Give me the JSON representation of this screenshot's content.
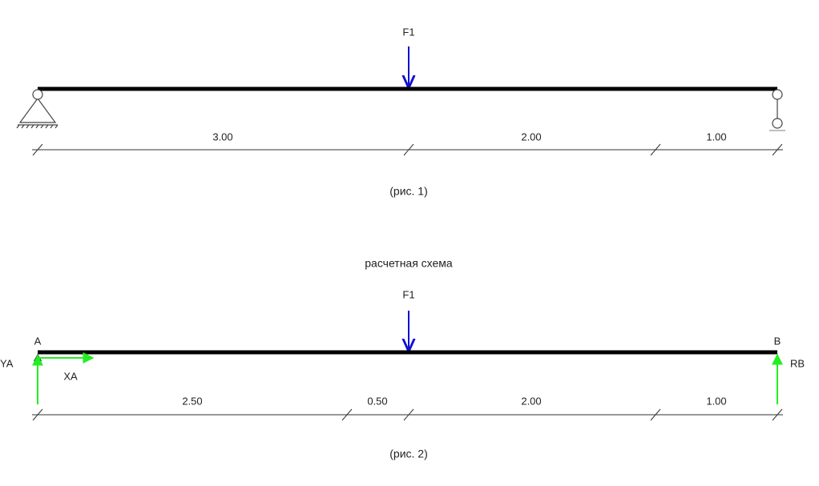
{
  "figures": [
    {
      "force_label": "F1",
      "dimensions": [
        "3.00",
        "2.00",
        "1.00"
      ],
      "caption": "(рис. 1)"
    },
    {
      "title": "расчетная схема",
      "force_label": "F1",
      "node_labels": [
        "A",
        "B"
      ],
      "reaction_labels": [
        "YA",
        "XA",
        "RB"
      ],
      "dimensions": [
        "2.50",
        "0.50",
        "2.00",
        "1.00"
      ],
      "caption": "(рис. 2)"
    }
  ]
}
